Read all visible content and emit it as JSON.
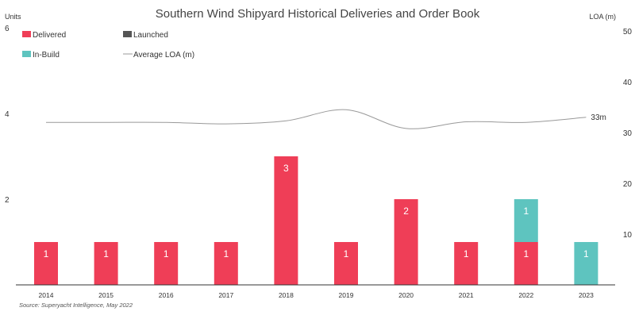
{
  "chart_data": {
    "type": "bar",
    "title": "Southern Wind Shipyard Historical Deliveries and Order Book",
    "ylabel_left": "Units",
    "ylabel_right": "LOA (m)",
    "source": "Source: Superyacht Intelligence, May 2022",
    "categories": [
      "2014",
      "2015",
      "2016",
      "2017",
      "2018",
      "2019",
      "2020",
      "2021",
      "2022",
      "2023"
    ],
    "series": [
      {
        "name": "Delivered",
        "color": "#ef3e57",
        "values": [
          1,
          1,
          1,
          1,
          3,
          1,
          2,
          1,
          1,
          0
        ]
      },
      {
        "name": "Launched",
        "color": "#555555",
        "values": [
          0,
          0,
          0,
          0,
          0,
          0,
          0,
          0,
          0,
          0
        ]
      },
      {
        "name": "In-Build",
        "color": "#5ec4bf",
        "values": [
          0,
          0,
          0,
          0,
          0,
          0,
          0,
          0,
          1,
          1
        ]
      }
    ],
    "line_series": {
      "name": "Average LOA (m)",
      "color": "#999999",
      "values": [
        32,
        32,
        32,
        31.7,
        32.3,
        34.5,
        30.8,
        32.1,
        32,
        33
      ],
      "end_label": "33m"
    },
    "y_left": {
      "ylim": [
        0,
        6
      ],
      "ticks": [
        "2",
        "4",
        "6"
      ]
    },
    "y_right": {
      "ylim": [
        0,
        50
      ],
      "ticks": [
        "10",
        "20",
        "30",
        "40",
        "50"
      ]
    },
    "legend": {
      "position": "top-left",
      "items": [
        "Delivered",
        "Launched",
        "In-Build",
        "Average LOA (m)"
      ]
    }
  }
}
